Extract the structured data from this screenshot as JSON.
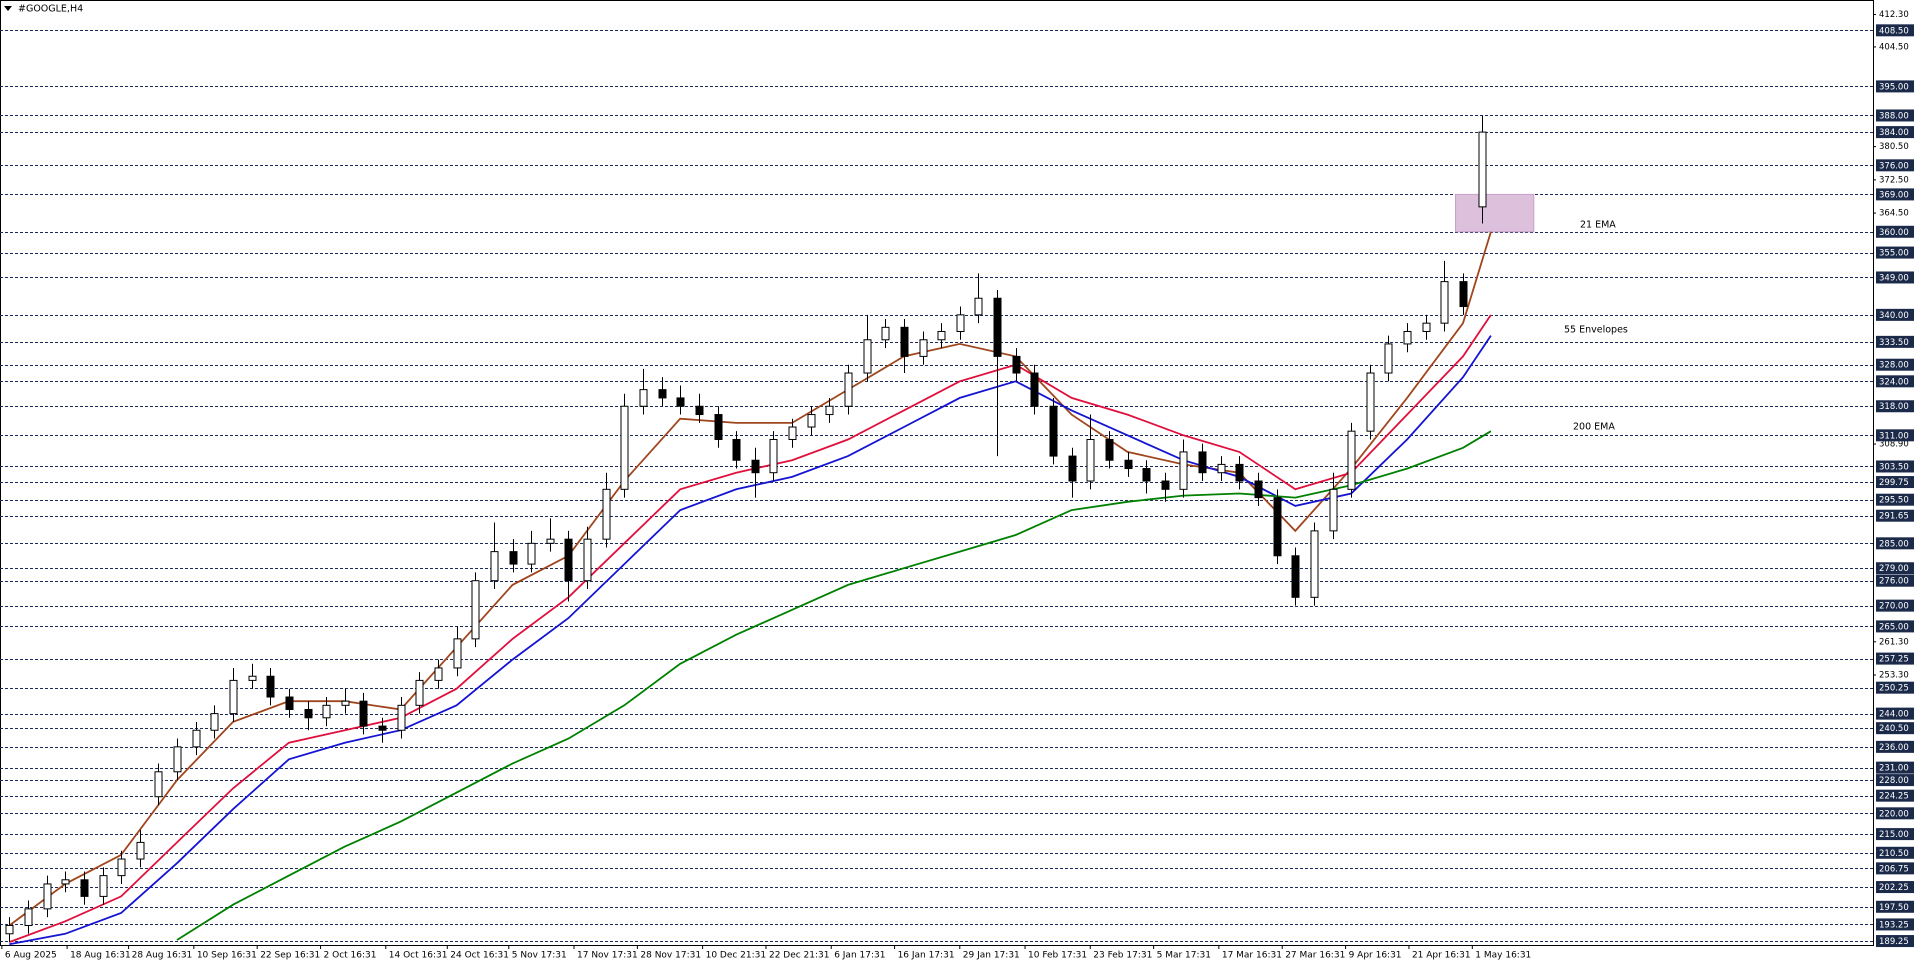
{
  "chart_data": {
    "type": "candlestick",
    "title": "#GOOGLE,H4",
    "ylim": [
      188.3,
      415.8
    ],
    "xlim": [
      -0.5,
      100
    ],
    "candles": {
      "up_color": "#ffffff",
      "down_color": "#000000",
      "open": [
        191,
        193,
        197,
        203,
        204,
        200,
        205,
        209,
        224,
        230,
        236,
        240,
        244,
        252,
        253,
        248,
        245,
        243,
        246,
        247,
        241,
        240,
        246,
        252,
        255,
        262,
        276,
        283,
        280,
        285,
        286,
        276,
        286,
        298,
        318,
        322,
        320,
        318,
        316,
        310,
        305,
        302,
        310,
        313,
        316,
        318,
        326,
        334,
        337,
        330,
        334,
        336,
        340,
        344,
        330,
        326,
        318,
        306,
        300,
        310,
        305,
        303,
        300,
        298,
        307,
        302,
        304,
        300,
        296,
        282,
        272,
        288,
        298,
        312,
        326,
        333,
        336,
        338,
        348,
        366
      ],
      "high": [
        195,
        199,
        205,
        206,
        206,
        207,
        211,
        216,
        232,
        238,
        242,
        246,
        255,
        256,
        255,
        250,
        247,
        248,
        250,
        249,
        243,
        248,
        254,
        257,
        265,
        278,
        290,
        286,
        288,
        291,
        288,
        289,
        302,
        321,
        327,
        325,
        323,
        321,
        318,
        312,
        308,
        312,
        315,
        318,
        320,
        328,
        340,
        339,
        339,
        336,
        338,
        342,
        350,
        346,
        332,
        328,
        320,
        308,
        316,
        312,
        307,
        305,
        302,
        310,
        309,
        306,
        306,
        302,
        298,
        284,
        290,
        302,
        314,
        328,
        335,
        338,
        340,
        353,
        350,
        388
      ],
      "low": [
        189,
        191,
        195,
        201,
        198,
        198,
        203,
        207,
        222,
        228,
        234,
        238,
        242,
        250,
        246,
        243,
        240,
        241,
        244,
        239,
        237,
        238,
        244,
        250,
        253,
        260,
        274,
        278,
        278,
        283,
        271,
        274,
        284,
        296,
        316,
        318,
        316,
        314,
        308,
        303,
        296,
        300,
        308,
        311,
        314,
        316,
        324,
        332,
        326,
        328,
        332,
        334,
        338,
        306,
        324,
        316,
        304,
        296,
        298,
        303,
        301,
        297,
        295,
        296,
        300,
        300,
        298,
        294,
        280,
        270,
        270,
        286,
        296,
        310,
        324,
        331,
        334,
        336,
        340,
        362
      ],
      "close": [
        193,
        197,
        203,
        204,
        200,
        205,
        209,
        213,
        230,
        236,
        240,
        244,
        252,
        253,
        248,
        245,
        243,
        246,
        247,
        241,
        240,
        246,
        252,
        255,
        262,
        276,
        283,
        280,
        285,
        286,
        276,
        286,
        298,
        318,
        322,
        320,
        318,
        316,
        310,
        305,
        302,
        310,
        313,
        316,
        318,
        326,
        334,
        337,
        330,
        334,
        336,
        340,
        344,
        330,
        326,
        318,
        306,
        300,
        310,
        305,
        303,
        300,
        298,
        307,
        302,
        304,
        300,
        296,
        282,
        272,
        288,
        298,
        312,
        326,
        333,
        336,
        338,
        348,
        342,
        384
      ]
    },
    "line_x": [
      0,
      3,
      6,
      9,
      12,
      15,
      18,
      21,
      24,
      27,
      30,
      33,
      36,
      39,
      42,
      45,
      48,
      51,
      54,
      57,
      60,
      63,
      66,
      69,
      72,
      75,
      78,
      79.5
    ],
    "lines": [
      {
        "color": "#a0461e",
        "values": [
          193,
          203,
          210,
          228,
          242,
          247,
          247,
          245,
          260,
          275,
          282,
          300,
          315,
          314,
          314,
          322,
          330,
          333,
          330,
          316,
          307,
          304,
          302,
          288,
          303,
          320,
          338,
          360
        ]
      },
      {
        "color": "#e0103c",
        "values": [
          189,
          194,
          200,
          213,
          226,
          237,
          240,
          243,
          250,
          262,
          272,
          285,
          298,
          302,
          305,
          310,
          317,
          324,
          328,
          320,
          316,
          311,
          307,
          298,
          302,
          316,
          330,
          340
        ]
      },
      {
        "color": "#1414d2",
        "values": [
          188.5,
          191,
          196,
          208,
          221,
          233,
          237,
          240,
          246,
          257,
          267,
          280,
          293,
          298,
          301,
          306,
          313,
          320,
          324,
          317,
          311,
          305,
          301,
          294,
          297,
          310,
          325,
          335
        ]
      },
      {
        "color": "#008000",
        "values": [
          null,
          null,
          null,
          189.5,
          198,
          205,
          212,
          218,
          225,
          232,
          238,
          246,
          256,
          263,
          269,
          275,
          279,
          283,
          287,
          293,
          295,
          296.5,
          297,
          296,
          299,
          303,
          308,
          312
        ]
      }
    ],
    "annotations": [
      {
        "text": "21 EMA",
        "color": "#a0461e"
      },
      {
        "text": "55 Envelopes",
        "color": "#1414d2"
      },
      {
        "text": "200 EMA",
        "color": "#008000"
      }
    ],
    "zone": {
      "x": [
        77.6,
        81.8
      ],
      "y": [
        360,
        369
      ],
      "color": "#dcc0dc"
    },
    "yticks": [
      {
        "value": 412.3,
        "label": "412.30"
      },
      {
        "value": 404.5,
        "label": "404.50"
      },
      {
        "value": 380.5,
        "label": "380.50"
      },
      {
        "value": 372.5,
        "label": "372.50"
      },
      {
        "value": 364.5,
        "label": "364.50"
      },
      {
        "value": 308.9,
        "label": "308.90"
      },
      {
        "value": 261.3,
        "label": "261.30"
      },
      {
        "value": 253.3,
        "label": "253.30"
      }
    ],
    "levels": [
      {
        "value": 408.5,
        "label": "408.50"
      },
      {
        "value": 395,
        "label": "395.00"
      },
      {
        "value": 388,
        "label": "388.00"
      },
      {
        "value": 384,
        "label": "384.00"
      },
      {
        "value": 376,
        "label": "376.00"
      },
      {
        "value": 369,
        "label": "369.00"
      },
      {
        "value": 360,
        "label": "360.00"
      },
      {
        "value": 355,
        "label": "355.00"
      },
      {
        "value": 349,
        "label": "349.00"
      },
      {
        "value": 340,
        "label": "340.00"
      },
      {
        "value": 333.5,
        "label": "333.50"
      },
      {
        "value": 328,
        "label": "328.00"
      },
      {
        "value": 324,
        "label": "324.00"
      },
      {
        "value": 318,
        "label": "318.00"
      },
      {
        "value": 311,
        "label": "311.00"
      },
      {
        "value": 303.5,
        "label": "303.50"
      },
      {
        "value": 299.75,
        "label": "299.75"
      },
      {
        "value": 295.5,
        "label": "295.50"
      },
      {
        "value": 291.65,
        "label": "291.65"
      },
      {
        "value": 285,
        "label": "285.00"
      },
      {
        "value": 279,
        "label": "279.00"
      },
      {
        "value": 276,
        "label": "276.00"
      },
      {
        "value": 270,
        "label": "270.00"
      },
      {
        "value": 265,
        "label": "265.00"
      },
      {
        "value": 257.25,
        "label": "257.25"
      },
      {
        "value": 250.25,
        "label": "250.25"
      },
      {
        "value": 244,
        "label": "244.00"
      },
      {
        "value": 240.5,
        "label": "240.50"
      },
      {
        "value": 236,
        "label": "236.00"
      },
      {
        "value": 231,
        "label": "231.00"
      },
      {
        "value": 228,
        "label": "228.00"
      },
      {
        "value": 224.25,
        "label": "224.25"
      },
      {
        "value": 220,
        "label": "220.00"
      },
      {
        "value": 215,
        "label": "215.00"
      },
      {
        "value": 210.5,
        "label": "210.50"
      },
      {
        "value": 206.75,
        "label": "206.75"
      },
      {
        "value": 202.25,
        "label": "202.25"
      },
      {
        "value": 197.5,
        "label": "197.50"
      },
      {
        "value": 193.25,
        "label": "193.25"
      },
      {
        "value": 189.25,
        "label": "189.25"
      }
    ],
    "xticks": [
      {
        "value": -0.4,
        "label": "6 Aug 2025"
      },
      {
        "value": 3.1,
        "label": "18 Aug 16:31"
      },
      {
        "value": 6.4,
        "label": "28 Aug 16:31"
      },
      {
        "value": 9.9,
        "label": "10 Sep 16:31"
      },
      {
        "value": 13.3,
        "label": "22 Sep 16:31"
      },
      {
        "value": 16.7,
        "label": "2 Oct 16:31"
      },
      {
        "value": 20.2,
        "label": "14 Oct 16:31"
      },
      {
        "value": 23.5,
        "label": "24 Oct 16:31"
      },
      {
        "value": 26.8,
        "label": "5 Nov 17:31"
      },
      {
        "value": 30.3,
        "label": "17 Nov 17:31"
      },
      {
        "value": 33.7,
        "label": "28 Nov 17:31"
      },
      {
        "value": 37.2,
        "label": "10 Dec 21:31"
      },
      {
        "value": 40.6,
        "label": "22 Dec 21:31"
      },
      {
        "value": 44.1,
        "label": "6 Jan 17:31"
      },
      {
        "value": 47.5,
        "label": "16 Jan 17:31"
      },
      {
        "value": 51,
        "label": "29 Jan 17:31"
      },
      {
        "value": 54.5,
        "label": "10 Feb 17:31"
      },
      {
        "value": 58,
        "label": "23 Feb 17:31"
      },
      {
        "value": 61.4,
        "label": "5 Mar 17:31"
      },
      {
        "value": 64.9,
        "label": "17 Mar 16:31"
      },
      {
        "value": 68.3,
        "label": "27 Mar 16:31"
      },
      {
        "value": 71.7,
        "label": "9 Apr 16:31"
      },
      {
        "value": 75.1,
        "label": "21 Apr 16:31"
      },
      {
        "value": 78.5,
        "label": "1 May 16:31"
      }
    ]
  }
}
